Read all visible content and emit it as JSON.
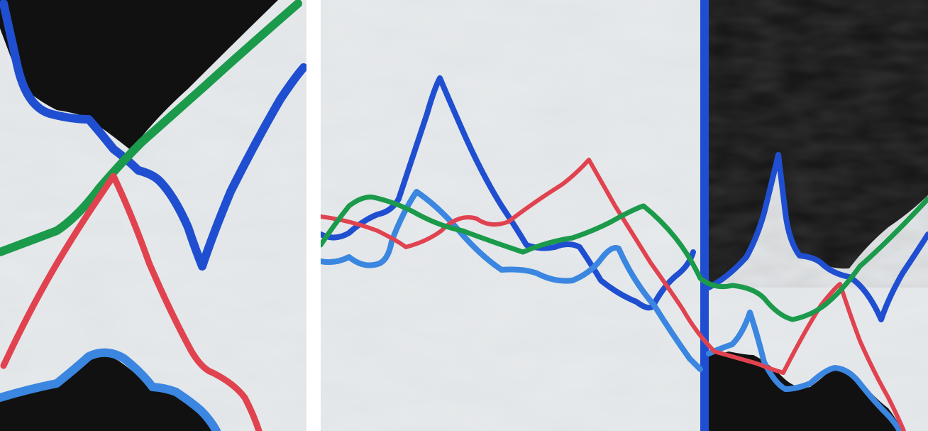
{
  "artwork": {
    "kind": "abstract painting diptych",
    "panels": [
      {
        "id": "left"
      },
      {
        "id": "right"
      }
    ],
    "colors": {
      "canvas": "#e7eaec",
      "canvas_shadow": "#d7dbde",
      "black": "#111111",
      "royal_blue": "#1f4fd0",
      "light_blue": "#3a86e0",
      "red": "#e0434f",
      "green": "#1a9a4a",
      "gap": "#ffffff"
    },
    "elements": {
      "black_shapes": 4,
      "lines": [
        "royal-blue",
        "light-blue",
        "red",
        "green"
      ]
    }
  }
}
